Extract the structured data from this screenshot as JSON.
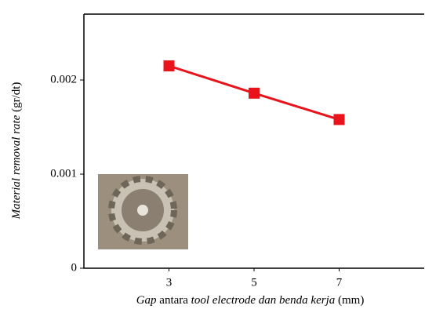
{
  "chart_data": {
    "type": "line",
    "ylabel_parts": [
      {
        "text": "Material removal rate",
        "italic": true
      },
      {
        "text": " (gr/dt)",
        "italic": false
      }
    ],
    "xlabel_parts": [
      {
        "text": "Gap",
        "italic": true
      },
      {
        "text": " antara ",
        "italic": false
      },
      {
        "text": "tool electrode dan benda kerja",
        "italic": true
      },
      {
        "text": " (mm)",
        "italic": false
      }
    ],
    "x": [
      3,
      5,
      7
    ],
    "series": [
      {
        "color": "#e8131b",
        "values": [
          0.00215,
          0.00186,
          0.00158
        ]
      }
    ],
    "xlim": [
      1,
      9
    ],
    "xticks": [
      3,
      5,
      7
    ],
    "ylim": [
      0,
      0.0027
    ],
    "yticks": [
      0,
      0.001,
      0.002
    ],
    "grid": false
  }
}
